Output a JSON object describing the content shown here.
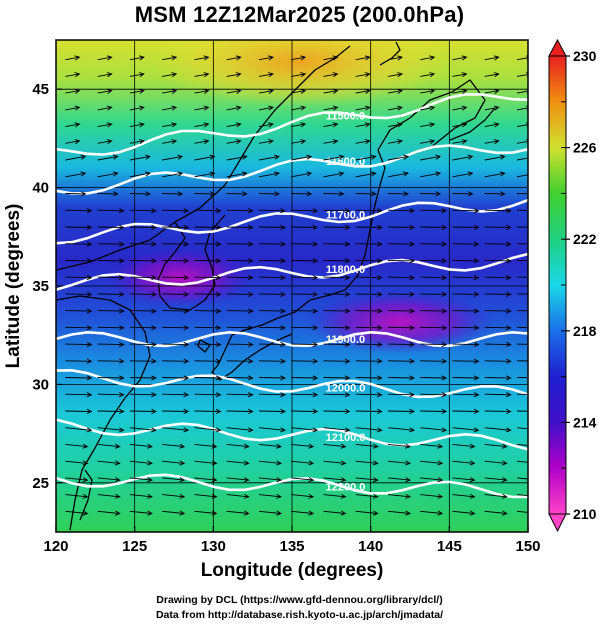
{
  "title": "MSM 12Z12Mar2025 (200.0hPa)",
  "x_axis": {
    "label": "Longitude (degrees)",
    "range": [
      120,
      150
    ],
    "ticks": [
      120,
      125,
      130,
      135,
      140,
      145,
      150
    ]
  },
  "y_axis": {
    "label": "Latitude  (degrees)",
    "range": [
      22.5,
      47.5
    ],
    "ticks": [
      25,
      30,
      35,
      40,
      45
    ]
  },
  "colorbar": {
    "range": [
      210,
      230
    ],
    "labeled_ticks": [
      210,
      214,
      218,
      222,
      226,
      230
    ],
    "colors": [
      "#ff44c8",
      "#b000c8",
      "#2020d0",
      "#1ad8e8",
      "#20d050",
      "#e8e830",
      "#f07010",
      "#e82020"
    ]
  },
  "contours": [
    {
      "label": "11500.0",
      "lat_west": 41.7,
      "lat_east": 44.8
    },
    {
      "label": "11600.0",
      "lat_west": 39.9,
      "lat_east": 42.2
    },
    {
      "label": "11700.0",
      "lat_west": 37.5,
      "lat_east": 39.3
    },
    {
      "label": "11800.0",
      "lat_west": 35.1,
      "lat_east": 36.3
    },
    {
      "label": "11900.0",
      "lat_west": 32.3,
      "lat_east": 32.3
    },
    {
      "label": "12000.0",
      "lat_west": 30.4,
      "lat_east": 29.5
    },
    {
      "label": "12100.0",
      "lat_west": 27.9,
      "lat_east": 27.0
    },
    {
      "label": "12200.0",
      "lat_west": 25.2,
      "lat_east": 24.6
    }
  ],
  "wind_flow": "westerly jet, strongest between 28N and 38N",
  "credits": [
    "Drawing by DCL (https://www.gfd-dennou.org/library/dcl/)",
    "Data from http://database.rish.kyoto-u.ac.jp/arch/jmadata/"
  ]
}
